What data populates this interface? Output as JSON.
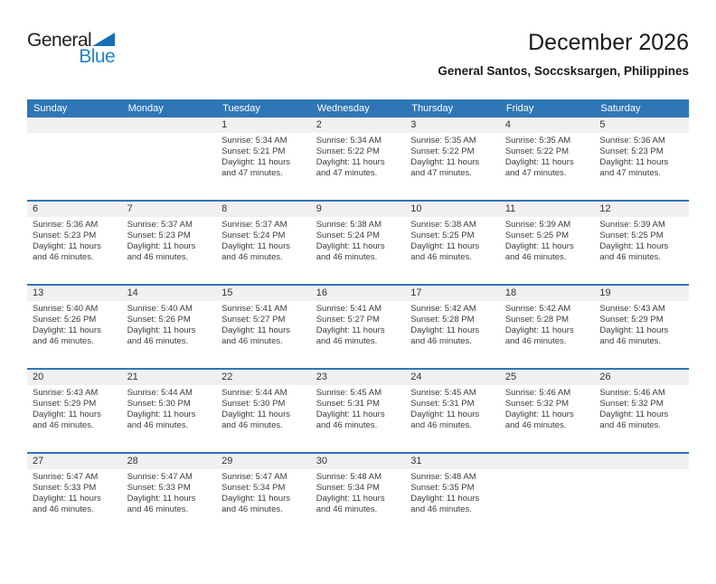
{
  "logo": {
    "word1": "General",
    "word2": "Blue"
  },
  "header": {
    "title": "December 2026",
    "subtitle": "General Santos, Soccsksargen, Philippines"
  },
  "colors": {
    "header_blue": "#3076b7",
    "number_band_gray": "#f0f0f0",
    "logo_dark": "#231f20",
    "logo_blue": "#1f86ce",
    "logo_triangle_blue": "#176fb2"
  },
  "calendar": {
    "weekdays": [
      "Sunday",
      "Monday",
      "Tuesday",
      "Wednesday",
      "Thursday",
      "Friday",
      "Saturday"
    ],
    "weeks": [
      [
        null,
        null,
        {
          "day": "1",
          "sunrise": "Sunrise: 5:34 AM",
          "sunset": "Sunset: 5:21 PM",
          "daylight": "Daylight: 11 hours and 47 minutes."
        },
        {
          "day": "2",
          "sunrise": "Sunrise: 5:34 AM",
          "sunset": "Sunset: 5:22 PM",
          "daylight": "Daylight: 11 hours and 47 minutes."
        },
        {
          "day": "3",
          "sunrise": "Sunrise: 5:35 AM",
          "sunset": "Sunset: 5:22 PM",
          "daylight": "Daylight: 11 hours and 47 minutes."
        },
        {
          "day": "4",
          "sunrise": "Sunrise: 5:35 AM",
          "sunset": "Sunset: 5:22 PM",
          "daylight": "Daylight: 11 hours and 47 minutes."
        },
        {
          "day": "5",
          "sunrise": "Sunrise: 5:36 AM",
          "sunset": "Sunset: 5:23 PM",
          "daylight": "Daylight: 11 hours and 47 minutes."
        }
      ],
      [
        {
          "day": "6",
          "sunrise": "Sunrise: 5:36 AM",
          "sunset": "Sunset: 5:23 PM",
          "daylight": "Daylight: 11 hours and 46 minutes."
        },
        {
          "day": "7",
          "sunrise": "Sunrise: 5:37 AM",
          "sunset": "Sunset: 5:23 PM",
          "daylight": "Daylight: 11 hours and 46 minutes."
        },
        {
          "day": "8",
          "sunrise": "Sunrise: 5:37 AM",
          "sunset": "Sunset: 5:24 PM",
          "daylight": "Daylight: 11 hours and 46 minutes."
        },
        {
          "day": "9",
          "sunrise": "Sunrise: 5:38 AM",
          "sunset": "Sunset: 5:24 PM",
          "daylight": "Daylight: 11 hours and 46 minutes."
        },
        {
          "day": "10",
          "sunrise": "Sunrise: 5:38 AM",
          "sunset": "Sunset: 5:25 PM",
          "daylight": "Daylight: 11 hours and 46 minutes."
        },
        {
          "day": "11",
          "sunrise": "Sunrise: 5:39 AM",
          "sunset": "Sunset: 5:25 PM",
          "daylight": "Daylight: 11 hours and 46 minutes."
        },
        {
          "day": "12",
          "sunrise": "Sunrise: 5:39 AM",
          "sunset": "Sunset: 5:25 PM",
          "daylight": "Daylight: 11 hours and 46 minutes."
        }
      ],
      [
        {
          "day": "13",
          "sunrise": "Sunrise: 5:40 AM",
          "sunset": "Sunset: 5:26 PM",
          "daylight": "Daylight: 11 hours and 46 minutes."
        },
        {
          "day": "14",
          "sunrise": "Sunrise: 5:40 AM",
          "sunset": "Sunset: 5:26 PM",
          "daylight": "Daylight: 11 hours and 46 minutes."
        },
        {
          "day": "15",
          "sunrise": "Sunrise: 5:41 AM",
          "sunset": "Sunset: 5:27 PM",
          "daylight": "Daylight: 11 hours and 46 minutes."
        },
        {
          "day": "16",
          "sunrise": "Sunrise: 5:41 AM",
          "sunset": "Sunset: 5:27 PM",
          "daylight": "Daylight: 11 hours and 46 minutes."
        },
        {
          "day": "17",
          "sunrise": "Sunrise: 5:42 AM",
          "sunset": "Sunset: 5:28 PM",
          "daylight": "Daylight: 11 hours and 46 minutes."
        },
        {
          "day": "18",
          "sunrise": "Sunrise: 5:42 AM",
          "sunset": "Sunset: 5:28 PM",
          "daylight": "Daylight: 11 hours and 46 minutes."
        },
        {
          "day": "19",
          "sunrise": "Sunrise: 5:43 AM",
          "sunset": "Sunset: 5:29 PM",
          "daylight": "Daylight: 11 hours and 46 minutes."
        }
      ],
      [
        {
          "day": "20",
          "sunrise": "Sunrise: 5:43 AM",
          "sunset": "Sunset: 5:29 PM",
          "daylight": "Daylight: 11 hours and 46 minutes."
        },
        {
          "day": "21",
          "sunrise": "Sunrise: 5:44 AM",
          "sunset": "Sunset: 5:30 PM",
          "daylight": "Daylight: 11 hours and 46 minutes."
        },
        {
          "day": "22",
          "sunrise": "Sunrise: 5:44 AM",
          "sunset": "Sunset: 5:30 PM",
          "daylight": "Daylight: 11 hours and 46 minutes."
        },
        {
          "day": "23",
          "sunrise": "Sunrise: 5:45 AM",
          "sunset": "Sunset: 5:31 PM",
          "daylight": "Daylight: 11 hours and 46 minutes."
        },
        {
          "day": "24",
          "sunrise": "Sunrise: 5:45 AM",
          "sunset": "Sunset: 5:31 PM",
          "daylight": "Daylight: 11 hours and 46 minutes."
        },
        {
          "day": "25",
          "sunrise": "Sunrise: 5:46 AM",
          "sunset": "Sunset: 5:32 PM",
          "daylight": "Daylight: 11 hours and 46 minutes."
        },
        {
          "day": "26",
          "sunrise": "Sunrise: 5:46 AM",
          "sunset": "Sunset: 5:32 PM",
          "daylight": "Daylight: 11 hours and 46 minutes."
        }
      ],
      [
        {
          "day": "27",
          "sunrise": "Sunrise: 5:47 AM",
          "sunset": "Sunset: 5:33 PM",
          "daylight": "Daylight: 11 hours and 46 minutes."
        },
        {
          "day": "28",
          "sunrise": "Sunrise: 5:47 AM",
          "sunset": "Sunset: 5:33 PM",
          "daylight": "Daylight: 11 hours and 46 minutes."
        },
        {
          "day": "29",
          "sunrise": "Sunrise: 5:47 AM",
          "sunset": "Sunset: 5:34 PM",
          "daylight": "Daylight: 11 hours and 46 minutes."
        },
        {
          "day": "30",
          "sunrise": "Sunrise: 5:48 AM",
          "sunset": "Sunset: 5:34 PM",
          "daylight": "Daylight: 11 hours and 46 minutes."
        },
        {
          "day": "31",
          "sunrise": "Sunrise: 5:48 AM",
          "sunset": "Sunset: 5:35 PM",
          "daylight": "Daylight: 11 hours and 46 minutes."
        },
        null,
        null
      ]
    ]
  }
}
